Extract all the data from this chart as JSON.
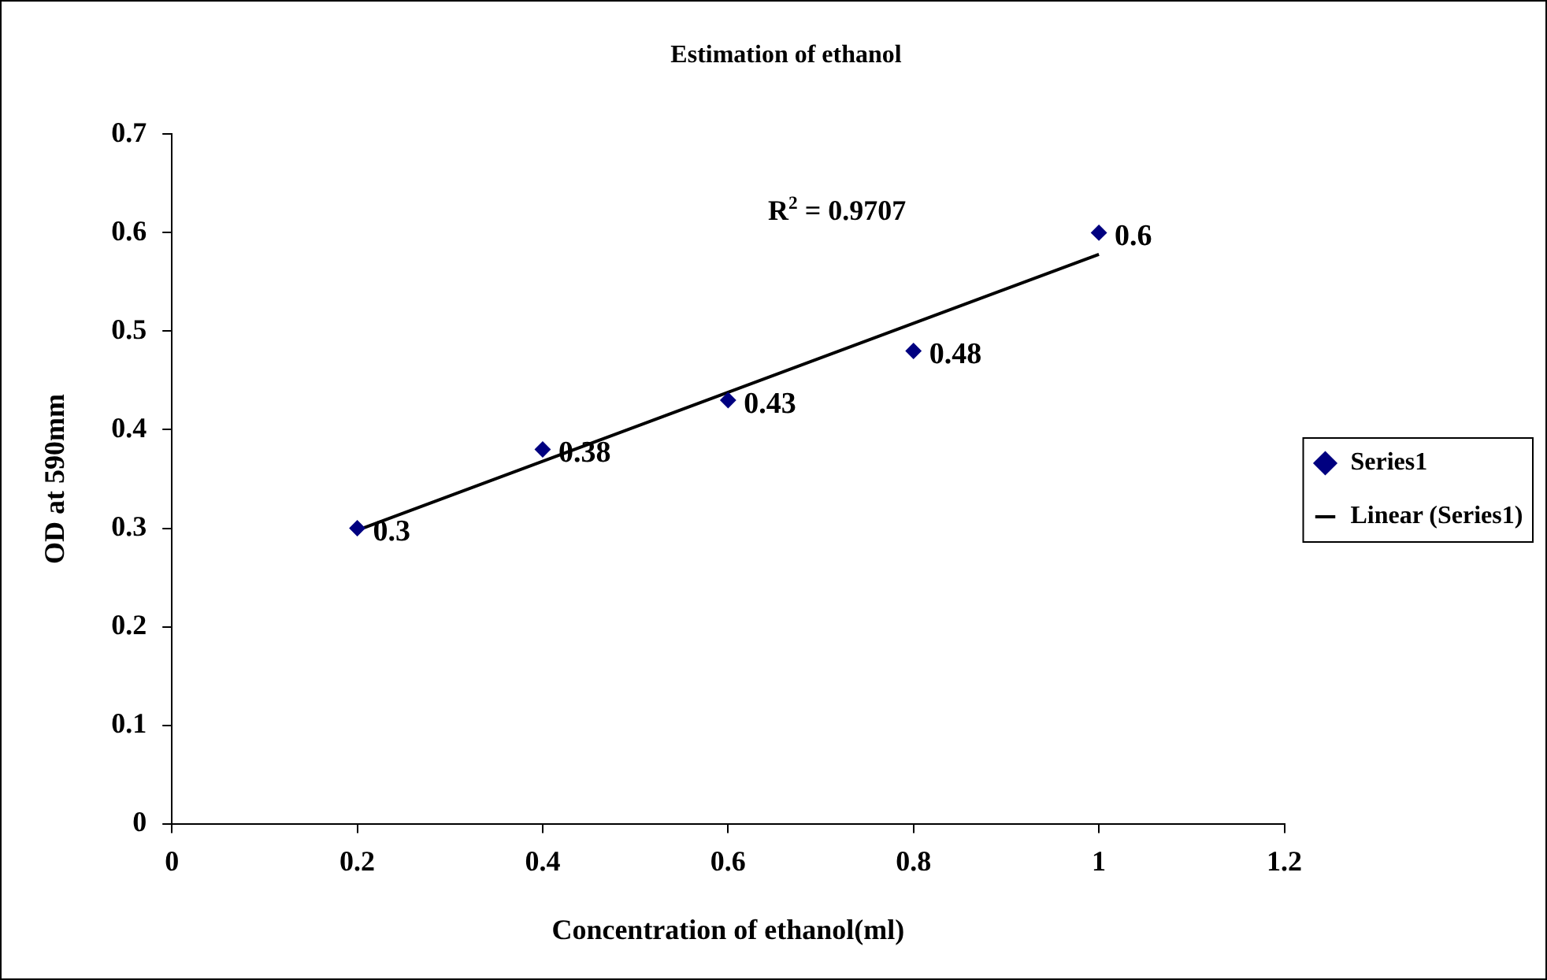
{
  "chart_data": {
    "type": "scatter",
    "title": "Estimation of ethanol",
    "xlabel": "Concentration of ethanol(ml)",
    "ylabel": "OD at 590mm",
    "x": [
      0.2,
      0.4,
      0.6,
      0.8,
      1
    ],
    "series": [
      {
        "name": "Series1",
        "color": "#000080",
        "marker": "diamond",
        "values": [
          0.3,
          0.38,
          0.43,
          0.48,
          0.6
        ],
        "value_labels": [
          "0.3",
          "0.38",
          "0.43",
          "0.48",
          "0.6"
        ]
      },
      {
        "name": "Linear (Series1)",
        "type": "line",
        "color": "#000000",
        "marker": "none",
        "line_style": "solid",
        "x": [
          0.2,
          1
        ],
        "values": [
          0.298,
          0.578
        ]
      }
    ],
    "annotations": [
      "R$^{2}$ = 0.9707"
    ],
    "xlim": [
      0,
      1.2
    ],
    "xticks": [
      0,
      0.2,
      0.4,
      0.6,
      0.8,
      1,
      1.2
    ],
    "ylim": [
      0,
      0.7
    ],
    "yticks": [
      0,
      0.1,
      0.2,
      0.3,
      0.4,
      0.5,
      0.6,
      0.7
    ],
    "grid": false,
    "legend": "right"
  }
}
